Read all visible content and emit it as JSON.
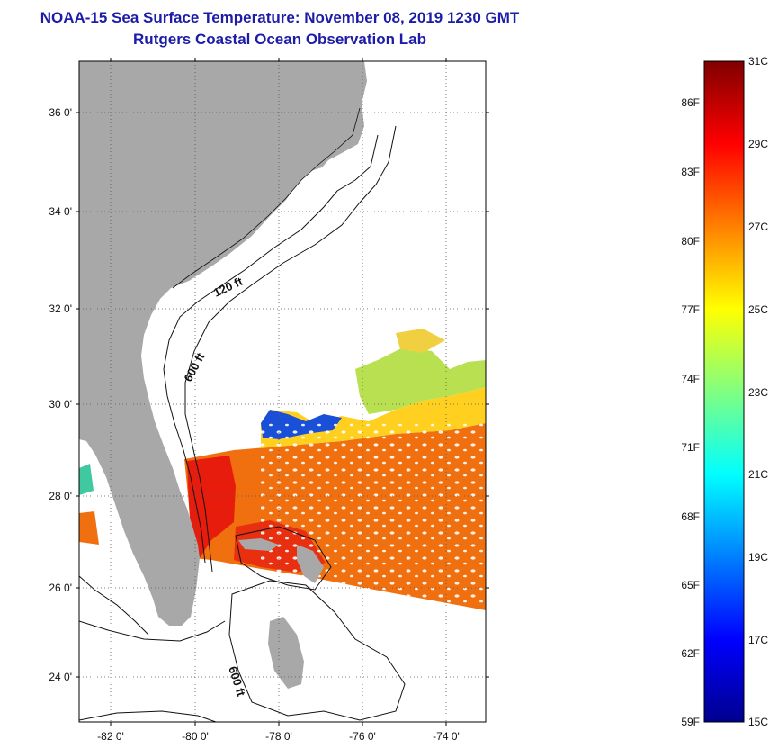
{
  "title": "NOAA-15 Sea Surface Temperature:  November 08, 2019 1230 GMT",
  "subtitle": "Rutgers Coastal Ocean Observation Lab",
  "map": {
    "lat_labels": [
      "36 0'",
      "34 0'",
      "32 0'",
      "30 0'",
      "28 0'",
      "26 0'",
      "24 0'"
    ],
    "lon_labels": [
      "-82 0'",
      "-80 0'",
      "-78 0'",
      "-76 0'",
      "-74 0'"
    ],
    "contour_labels": [
      "120 ft",
      "600 ft",
      "600 ft"
    ],
    "land_color": "#a8a8a8"
  },
  "colorbar": {
    "fahrenheit_labels": [
      "86F",
      "83F",
      "80F",
      "77F",
      "74F",
      "71F",
      "68F",
      "65F",
      "62F",
      "59F"
    ],
    "celsius_labels": [
      "31C",
      "29C",
      "27C",
      "25C",
      "23C",
      "21C",
      "19C",
      "17C",
      "15C"
    ],
    "colors": [
      "#00008f",
      "#0000ff",
      "#0080ff",
      "#00ffff",
      "#80ff80",
      "#ffff00",
      "#ff8000",
      "#ff0000",
      "#800000"
    ]
  }
}
